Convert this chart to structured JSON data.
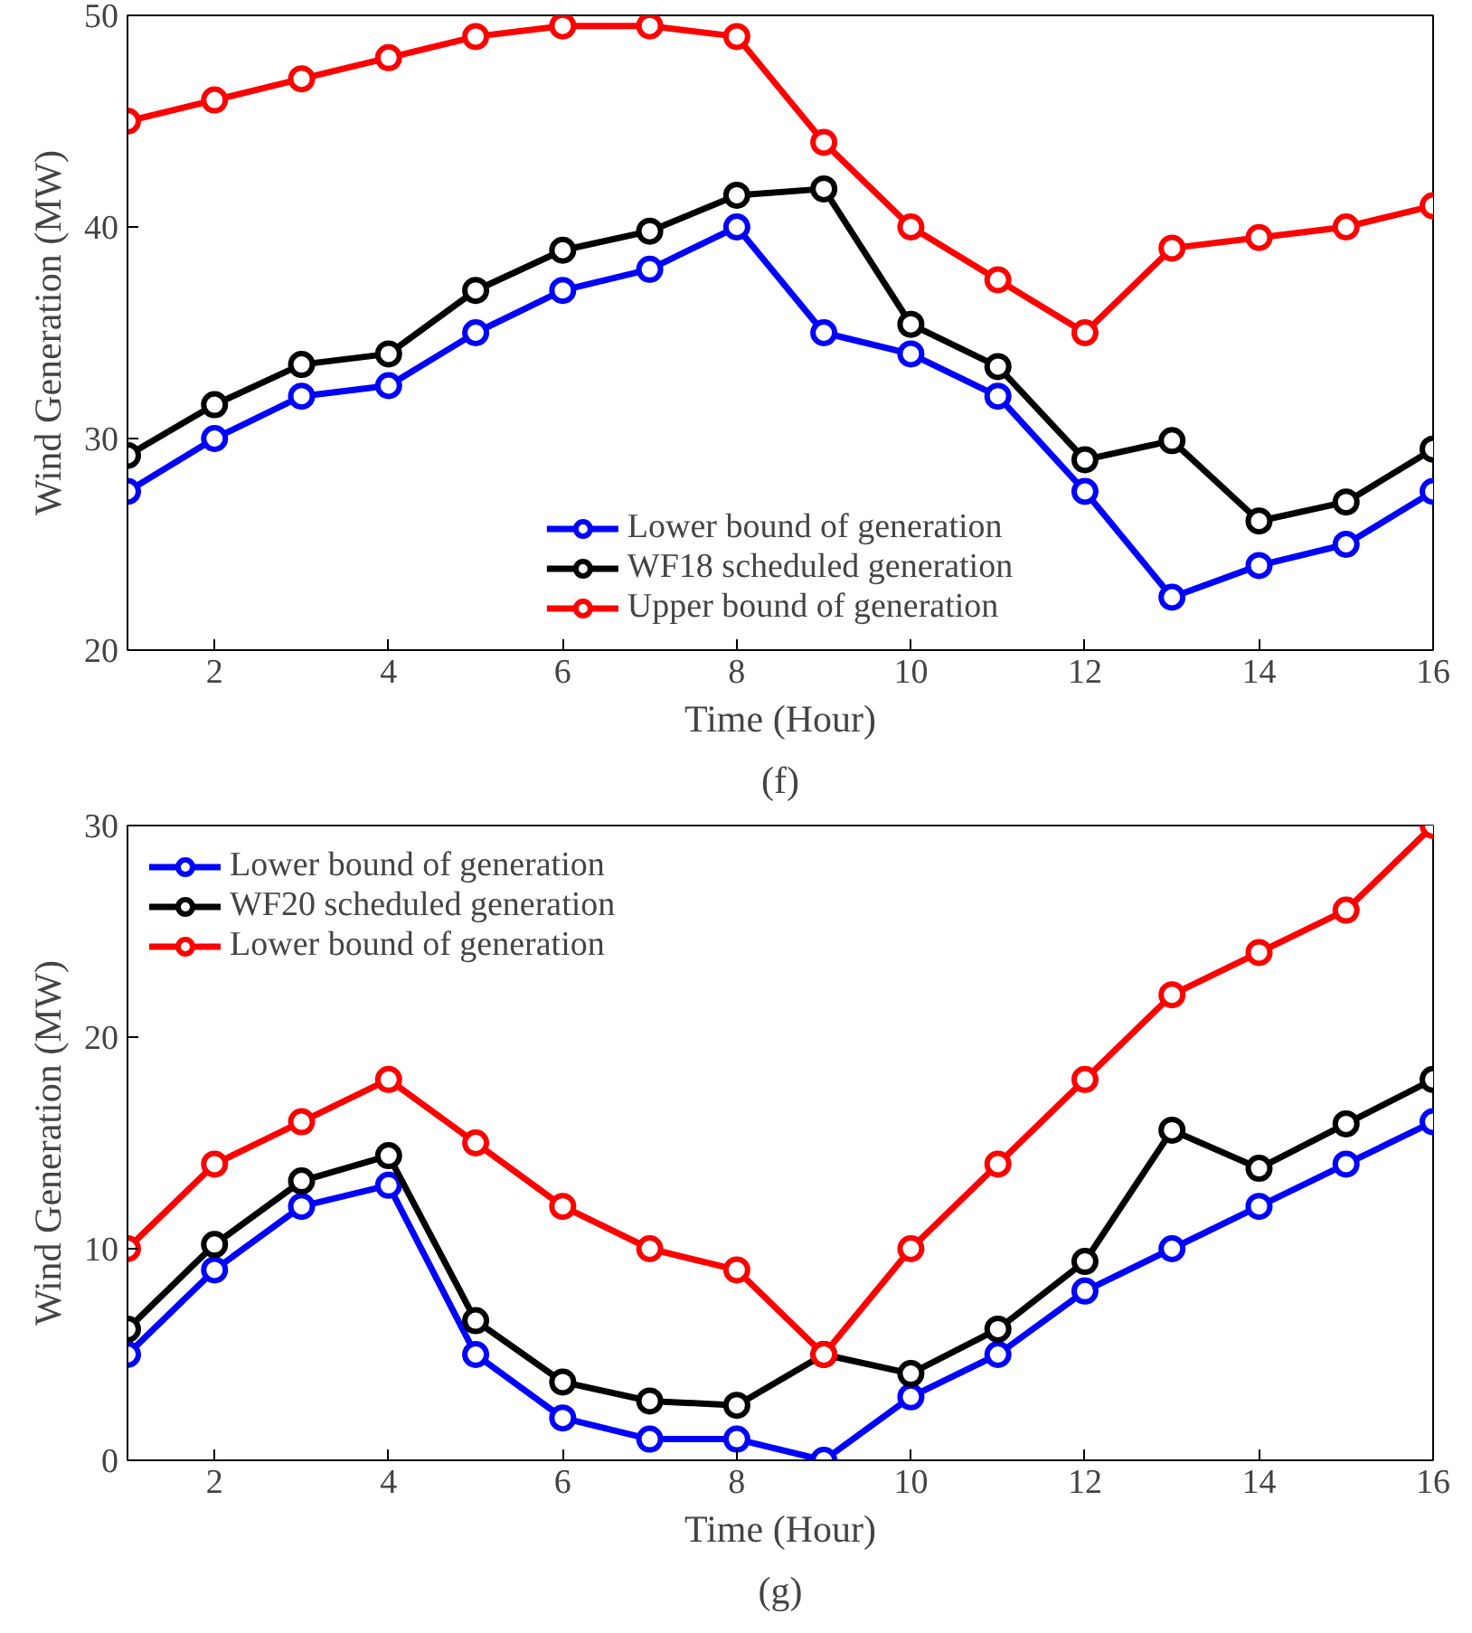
{
  "chart_data": [
    {
      "type": "line",
      "xlabel": "Time (Hour)",
      "ylabel": "Wind Generation (MW)",
      "annotations": [
        "(f)"
      ],
      "x": [
        1,
        2,
        3,
        4,
        5,
        6,
        7,
        8,
        9,
        10,
        11,
        12,
        13,
        14,
        15,
        16
      ],
      "xlim": [
        1,
        16
      ],
      "xticks": [
        2,
        4,
        6,
        8,
        10,
        12,
        14,
        16
      ],
      "ylim": [
        20,
        50
      ],
      "yticks": [
        20,
        30,
        40,
        50
      ],
      "grid": false,
      "legend": "bottom",
      "marker": "circle",
      "line_style": "solid",
      "series": [
        {
          "name": "Lower bound of generation",
          "color": "#0000ff",
          "values": [
            27.5,
            30,
            32,
            32.5,
            35,
            37,
            38,
            40,
            35,
            34,
            32,
            27.5,
            22.5,
            24,
            25,
            27.5
          ]
        },
        {
          "name": "WF18 scheduled generation",
          "color": "#000000",
          "values": [
            29.2,
            31.6,
            33.5,
            34,
            37,
            38.9,
            39.8,
            41.5,
            41.8,
            35.4,
            33.4,
            29,
            29.9,
            26.1,
            27,
            29.5
          ]
        },
        {
          "name": "Upper bound of generation",
          "color": "#ff0000",
          "values": [
            45,
            46,
            47,
            48,
            49,
            49.5,
            49.5,
            49,
            44,
            40,
            37.5,
            35,
            39,
            39.5,
            40,
            41
          ]
        }
      ]
    },
    {
      "type": "line",
      "xlabel": "Time (Hour)",
      "ylabel": "Wind Generation (MW)",
      "annotations": [
        "(g)"
      ],
      "x": [
        1,
        2,
        3,
        4,
        5,
        6,
        7,
        8,
        9,
        10,
        11,
        12,
        13,
        14,
        15,
        16
      ],
      "xlim": [
        1,
        16
      ],
      "xticks": [
        2,
        4,
        6,
        8,
        10,
        12,
        14,
        16
      ],
      "ylim": [
        0,
        30
      ],
      "yticks": [
        0,
        10,
        20,
        30
      ],
      "grid": false,
      "legend": "top left",
      "marker": "circle",
      "line_style": "solid",
      "series": [
        {
          "name": "Lower bound of generation",
          "color": "#0000ff",
          "values": [
            5,
            9,
            12,
            13,
            5,
            2,
            1,
            1,
            0,
            3,
            5,
            8,
            10,
            12,
            14,
            16
          ]
        },
        {
          "name": "WF20 scheduled generation",
          "color": "#000000",
          "values": [
            6.2,
            10.2,
            13.2,
            14.4,
            6.6,
            3.7,
            2.8,
            2.6,
            5,
            4.1,
            6.2,
            9.4,
            15.6,
            13.8,
            15.9,
            18
          ]
        },
        {
          "name": "Lower bound of generation",
          "color": "#ff0000",
          "values": [
            10,
            14,
            16,
            18,
            15,
            12,
            10,
            9,
            5,
            10,
            14,
            18,
            22,
            24,
            26,
            30
          ]
        }
      ]
    }
  ]
}
